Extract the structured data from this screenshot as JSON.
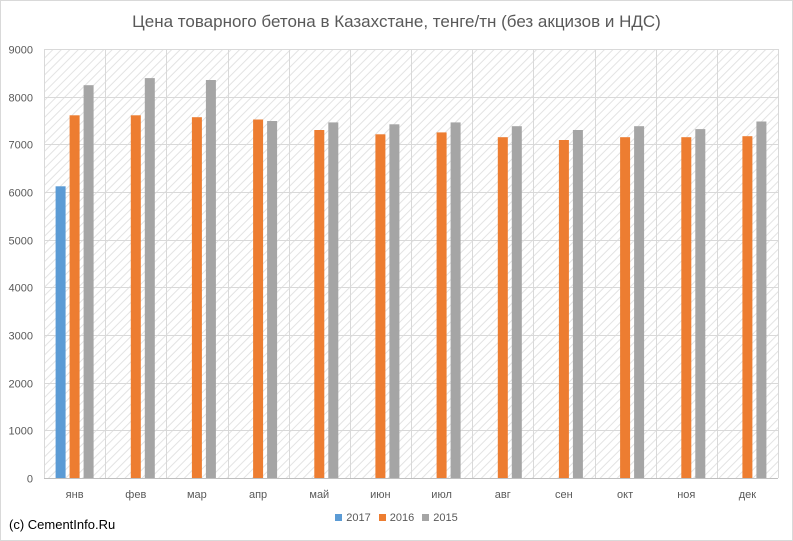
{
  "chart_data": {
    "type": "bar",
    "title": "Цена товарного бетона в Казахстане, тенге/тн (без акцизов и НДС)",
    "categories": [
      "янв",
      "фев",
      "мар",
      "апр",
      "май",
      "июн",
      "июл",
      "авг",
      "сен",
      "окт",
      "ноя",
      "дек"
    ],
    "series": [
      {
        "name": "2017",
        "color": "#5b9bd5",
        "values": [
          6120,
          null,
          null,
          null,
          null,
          null,
          null,
          null,
          null,
          null,
          null,
          null
        ]
      },
      {
        "name": "2016",
        "color": "#ed7d31",
        "values": [
          7610,
          7610,
          7570,
          7520,
          7300,
          7210,
          7250,
          7150,
          7090,
          7150,
          7150,
          7170
        ]
      },
      {
        "name": "2015",
        "color": "#a5a5a5",
        "values": [
          8240,
          8390,
          8350,
          7490,
          7460,
          7420,
          7460,
          7380,
          7300,
          7380,
          7320,
          7480
        ]
      }
    ],
    "xlabel": "",
    "ylabel": "",
    "ylim": [
      0,
      9000
    ],
    "yticks": [
      "0",
      "1000",
      "2000",
      "3000",
      "4000",
      "5000",
      "6000",
      "7000",
      "8000",
      "9000"
    ],
    "grid": true,
    "legend_position": "bottom"
  },
  "footer": {
    "copyright": "(c) CementInfo.Ru"
  }
}
